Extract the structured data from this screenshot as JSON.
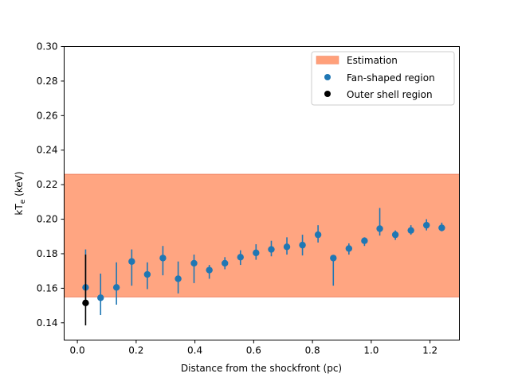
{
  "chart_data": {
    "type": "scatter",
    "xlabel": "Distance from the shockfront (pc)",
    "ylabel_main": "kT",
    "ylabel_sub": "e",
    "ylabel_unit": " (keV)",
    "xlim": [
      -0.045,
      1.3
    ],
    "ylim": [
      0.13,
      0.3
    ],
    "xticks": [
      0.0,
      0.2,
      0.4,
      0.6,
      0.8,
      1.0,
      1.2
    ],
    "xtick_labels": [
      "0.0",
      "0.2",
      "0.4",
      "0.6",
      "0.8",
      "1.0",
      "1.2"
    ],
    "yticks": [
      0.14,
      0.16,
      0.18,
      0.2,
      0.22,
      0.24,
      0.26,
      0.28,
      0.3
    ],
    "ytick_labels": [
      "0.14",
      "0.16",
      "0.18",
      "0.20",
      "0.22",
      "0.24",
      "0.26",
      "0.28",
      "0.30"
    ],
    "estimation_band": {
      "name": "Estimation",
      "y_low": 0.155,
      "y_high": 0.226,
      "color": "#ffa07a",
      "edge_color": "#f08060"
    },
    "series": [
      {
        "name": "Fan-shaped region",
        "color": "#1f77b4",
        "points": [
          {
            "x": 0.028,
            "y": 0.1605,
            "lo": 0.1535,
            "hi": 0.1825
          },
          {
            "x": 0.079,
            "y": 0.1545,
            "lo": 0.1445,
            "hi": 0.1685
          },
          {
            "x": 0.133,
            "y": 0.1605,
            "lo": 0.1505,
            "hi": 0.175
          },
          {
            "x": 0.185,
            "y": 0.1755,
            "lo": 0.1615,
            "hi": 0.1825
          },
          {
            "x": 0.238,
            "y": 0.168,
            "lo": 0.1595,
            "hi": 0.175
          },
          {
            "x": 0.291,
            "y": 0.1775,
            "lo": 0.1675,
            "hi": 0.1845
          },
          {
            "x": 0.343,
            "y": 0.1655,
            "lo": 0.157,
            "hi": 0.1755
          },
          {
            "x": 0.397,
            "y": 0.1745,
            "lo": 0.163,
            "hi": 0.1795
          },
          {
            "x": 0.449,
            "y": 0.1705,
            "lo": 0.1655,
            "hi": 0.1735
          },
          {
            "x": 0.502,
            "y": 0.1745,
            "lo": 0.171,
            "hi": 0.178
          },
          {
            "x": 0.555,
            "y": 0.178,
            "lo": 0.1735,
            "hi": 0.182
          },
          {
            "x": 0.608,
            "y": 0.1805,
            "lo": 0.1765,
            "hi": 0.1855
          },
          {
            "x": 0.66,
            "y": 0.1825,
            "lo": 0.1785,
            "hi": 0.1875
          },
          {
            "x": 0.713,
            "y": 0.184,
            "lo": 0.1795,
            "hi": 0.1895
          },
          {
            "x": 0.766,
            "y": 0.185,
            "lo": 0.179,
            "hi": 0.191
          },
          {
            "x": 0.819,
            "y": 0.191,
            "lo": 0.1865,
            "hi": 0.1965
          },
          {
            "x": 0.871,
            "y": 0.1775,
            "lo": 0.1615,
            "hi": 0.179
          },
          {
            "x": 0.924,
            "y": 0.183,
            "lo": 0.1795,
            "hi": 0.186
          },
          {
            "x": 0.977,
            "y": 0.1875,
            "lo": 0.1845,
            "hi": 0.1895
          },
          {
            "x": 1.029,
            "y": 0.1945,
            "lo": 0.1905,
            "hi": 0.2065
          },
          {
            "x": 1.082,
            "y": 0.191,
            "lo": 0.188,
            "hi": 0.1935
          },
          {
            "x": 1.135,
            "y": 0.1935,
            "lo": 0.191,
            "hi": 0.1965
          },
          {
            "x": 1.188,
            "y": 0.1965,
            "lo": 0.1935,
            "hi": 0.2
          },
          {
            "x": 1.24,
            "y": 0.195,
            "lo": 0.193,
            "hi": 0.198
          }
        ]
      },
      {
        "name": "Outer shell region",
        "color": "#000000",
        "points": [
          {
            "x": 0.028,
            "y": 0.1515,
            "lo": 0.1385,
            "hi": 0.1795
          }
        ]
      }
    ],
    "legend": {
      "placement": "top-right",
      "entries": [
        "Estimation",
        "Fan-shaped region",
        "Outer shell region"
      ]
    }
  }
}
